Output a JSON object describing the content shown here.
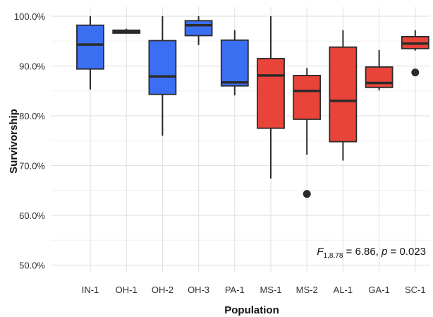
{
  "chart_data": {
    "type": "box",
    "xlabel": "Population",
    "ylabel": "Survivorship",
    "ylim": [
      0.485,
      1.0
    ],
    "yticks": [
      0.5,
      0.6,
      0.7,
      0.8,
      0.9,
      1.0
    ],
    "ytick_labels": [
      "50.0%",
      "60.0%",
      "70.0%",
      "80.0%",
      "90.0%",
      "100.0%"
    ],
    "grid": true,
    "colors": {
      "blue": "#3b6ff2",
      "red": "#e8443a",
      "outline": "#2b2b2b"
    },
    "categories": [
      "IN-1",
      "OH-1",
      "OH-2",
      "OH-3",
      "PA-1",
      "MS-1",
      "MS-2",
      "AL-1",
      "GA-1",
      "SC-1"
    ],
    "boxes": [
      {
        "label": "IN-1",
        "color": "blue",
        "min": 0.853,
        "q1": 0.894,
        "median": 0.943,
        "q3": 0.982,
        "max": 1.0,
        "outliers": []
      },
      {
        "label": "OH-1",
        "color": "blue",
        "min": 0.966,
        "q1": 0.966,
        "median": 0.969,
        "q3": 0.972,
        "max": 0.975,
        "outliers": []
      },
      {
        "label": "OH-2",
        "color": "blue",
        "min": 0.76,
        "q1": 0.843,
        "median": 0.879,
        "q3": 0.951,
        "max": 1.0,
        "outliers": []
      },
      {
        "label": "OH-3",
        "color": "blue",
        "min": 0.942,
        "q1": 0.961,
        "median": 0.982,
        "q3": 0.991,
        "max": 1.0,
        "outliers": []
      },
      {
        "label": "PA-1",
        "color": "blue",
        "min": 0.841,
        "q1": 0.86,
        "median": 0.867,
        "q3": 0.952,
        "max": 0.972,
        "outliers": []
      },
      {
        "label": "MS-1",
        "color": "red",
        "min": 0.674,
        "q1": 0.775,
        "median": 0.881,
        "q3": 0.915,
        "max": 1.0,
        "outliers": []
      },
      {
        "label": "MS-2",
        "color": "red",
        "min": 0.722,
        "q1": 0.793,
        "median": 0.85,
        "q3": 0.881,
        "max": 0.896,
        "outliers": [
          0.643
        ]
      },
      {
        "label": "AL-1",
        "color": "red",
        "min": 0.71,
        "q1": 0.748,
        "median": 0.83,
        "q3": 0.938,
        "max": 0.972,
        "outliers": []
      },
      {
        "label": "GA-1",
        "color": "red",
        "min": 0.851,
        "q1": 0.857,
        "median": 0.866,
        "q3": 0.898,
        "max": 0.932,
        "outliers": []
      },
      {
        "label": "SC-1",
        "color": "red",
        "min": 0.931,
        "q1": 0.935,
        "median": 0.945,
        "q3": 0.959,
        "max": 0.972,
        "outliers": [
          0.887
        ]
      }
    ],
    "annotation": {
      "stat_letter": "F",
      "stat_subscript": "1,8.78",
      "stat_value": " = 6.86, ",
      "p_letter": "p",
      "p_value": " = 0.023"
    }
  }
}
